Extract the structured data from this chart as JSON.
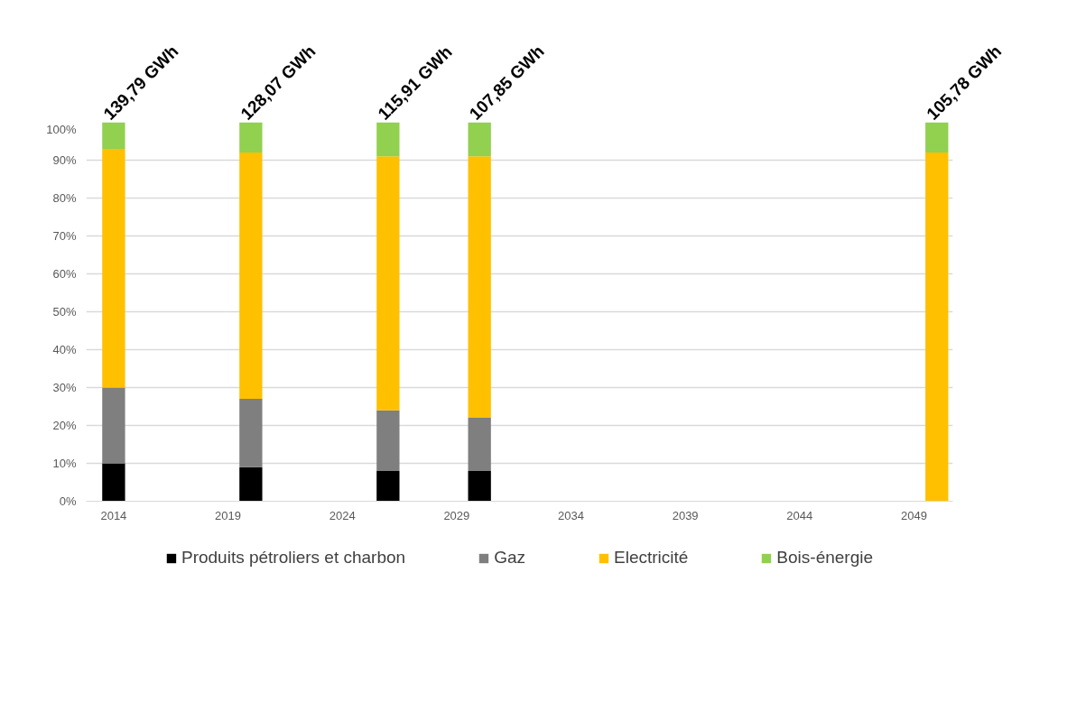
{
  "chart_data": {
    "type": "bar",
    "stacked": true,
    "x": [
      2014,
      2020,
      2026,
      2030,
      2050
    ],
    "series": [
      {
        "name": "Produits pétroliers et charbon",
        "color": "#000000",
        "values": [
          10,
          9,
          8,
          8,
          0
        ]
      },
      {
        "name": "Gaz",
        "color": "#7f7f7f",
        "values": [
          20,
          18,
          16,
          14,
          0
        ]
      },
      {
        "name": "Electricité",
        "color": "#ffc000",
        "values": [
          63,
          65,
          67,
          69,
          92
        ]
      },
      {
        "name": "Bois-énergie",
        "color": "#92d050",
        "values": [
          7,
          8,
          9,
          9,
          8
        ]
      }
    ],
    "annotations": [
      {
        "text": "139,79 GWh",
        "x": 2014,
        "y": 100
      },
      {
        "text": "128,07 GWh",
        "x": 2020,
        "y": 100
      },
      {
        "text": "115,91 GWh",
        "x": 2026,
        "y": 100
      },
      {
        "text": "107,85 GWh",
        "x": 2030,
        "y": 100
      },
      {
        "text": "105,78 GWh",
        "x": 2050,
        "y": 100
      }
    ],
    "xlim": [
      2012.8,
      2050.7
    ],
    "xticks": [
      2014,
      2019,
      2024,
      2029,
      2034,
      2039,
      2044,
      2049
    ],
    "ylim": [
      0,
      100
    ],
    "yticks": [
      {
        "value": 0,
        "label": "0%"
      },
      {
        "value": 10,
        "label": "10%"
      },
      {
        "value": 20,
        "label": "20%"
      },
      {
        "value": 30,
        "label": "30%"
      },
      {
        "value": 40,
        "label": "40%"
      },
      {
        "value": 50,
        "label": "50%"
      },
      {
        "value": 60,
        "label": "60%"
      },
      {
        "value": 70,
        "label": "70%"
      },
      {
        "value": 80,
        "label": "80%"
      },
      {
        "value": 90,
        "label": "90%"
      },
      {
        "value": 100,
        "label": "100%"
      }
    ],
    "grid": "y",
    "legend": "bottom"
  }
}
